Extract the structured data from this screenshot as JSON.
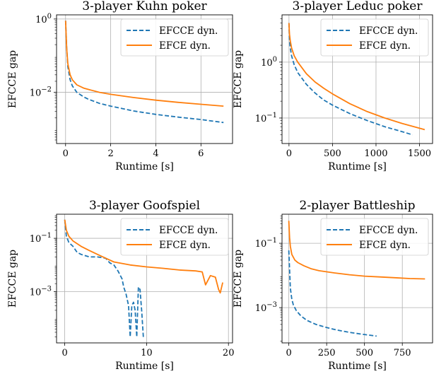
{
  "chart_data": [
    {
      "type": "line",
      "title": "3-player Kuhn poker",
      "xlabel": "Runtime [s]",
      "ylabel": "EFCCE gap",
      "xscale": "linear",
      "yscale": "log",
      "xlim": [
        -0.4,
        7.4
      ],
      "ylim": [
        0.0004,
        1.3
      ],
      "xticks": [
        0,
        2,
        4,
        6
      ],
      "xtick_labels": [
        "0",
        "2",
        "4",
        "6"
      ],
      "yticks": [
        1,
        0.01
      ],
      "ytick_labels": [
        "10^0",
        "10^-2"
      ],
      "grid": true,
      "legend": "top-right",
      "series": [
        {
          "name": "EFCCE dyn.",
          "color": "#1f77b4",
          "style": "dashed",
          "x": [
            0,
            0.05,
            0.1,
            0.2,
            0.3,
            0.5,
            0.8,
            1.0,
            1.5,
            2.0,
            3.0,
            4.0,
            5.0,
            6.0,
            7.0
          ],
          "y": [
            0.9,
            0.15,
            0.05,
            0.022,
            0.015,
            0.01,
            0.0075,
            0.0065,
            0.005,
            0.0042,
            0.0031,
            0.0025,
            0.0021,
            0.0018,
            0.0015
          ]
        },
        {
          "name": "EFCE dyn.",
          "color": "#ff7f0e",
          "style": "solid",
          "x": [
            0,
            0.05,
            0.1,
            0.2,
            0.3,
            0.5,
            0.8,
            1.0,
            1.5,
            2.0,
            3.0,
            4.0,
            5.0,
            6.0,
            7.0
          ],
          "y": [
            0.9,
            0.15,
            0.06,
            0.03,
            0.022,
            0.016,
            0.013,
            0.012,
            0.01,
            0.0088,
            0.0072,
            0.0061,
            0.0053,
            0.0047,
            0.0042
          ]
        }
      ]
    },
    {
      "type": "line",
      "title": "3-player Leduc poker",
      "xlabel": "Runtime [s]",
      "ylabel": "EFCCE gap",
      "xscale": "linear",
      "yscale": "log",
      "xlim": [
        -80,
        1650
      ],
      "ylim": [
        0.035,
        7
      ],
      "xticks": [
        0,
        500,
        1000,
        1500
      ],
      "xtick_labels": [
        "0",
        "500",
        "1000",
        "1500"
      ],
      "yticks": [
        1,
        0.1
      ],
      "ytick_labels": [
        "10^0",
        "10^-1"
      ],
      "grid": true,
      "legend": "top-right",
      "series": [
        {
          "name": "EFCCE dyn.",
          "color": "#1f77b4",
          "style": "dashed",
          "x": [
            0,
            5,
            15,
            30,
            60,
            100,
            200,
            300,
            400,
            500,
            700,
            900,
            1100,
            1300,
            1420
          ],
          "y": [
            5,
            2.5,
            1.8,
            1.3,
            0.9,
            0.65,
            0.4,
            0.28,
            0.21,
            0.17,
            0.12,
            0.09,
            0.07,
            0.057,
            0.05
          ]
        },
        {
          "name": "EFCE dyn.",
          "color": "#ff7f0e",
          "style": "solid",
          "x": [
            0,
            5,
            15,
            30,
            60,
            100,
            200,
            300,
            400,
            500,
            700,
            900,
            1100,
            1300,
            1560
          ],
          "y": [
            5,
            3.2,
            2.4,
            1.8,
            1.3,
            1.0,
            0.62,
            0.44,
            0.34,
            0.27,
            0.18,
            0.13,
            0.1,
            0.08,
            0.062
          ]
        }
      ]
    },
    {
      "type": "line",
      "title": "3-player Goofspiel",
      "xlabel": "Runtime [s]",
      "ylabel": "EFCCE gap",
      "xscale": "linear",
      "yscale": "log",
      "xlim": [
        -1,
        20.5
      ],
      "ylim": [
        1.2e-05,
        0.8
      ],
      "xticks": [
        0,
        10,
        20
      ],
      "xtick_labels": [
        "0",
        "10",
        "20"
      ],
      "yticks": [
        0.1,
        0.001
      ],
      "ytick_labels": [
        "10^-1",
        "10^-3"
      ],
      "grid": true,
      "legend": "top-right",
      "series": [
        {
          "name": "EFCCE dyn.",
          "color": "#1f77b4",
          "style": "dashed",
          "x": [
            0,
            0.2,
            0.5,
            1,
            1.5,
            2,
            3,
            4,
            5,
            5.5,
            6,
            6.5,
            7,
            7.2,
            7.5,
            7.8,
            8.0,
            8.2,
            8.4,
            8.6,
            8.8,
            9.0,
            9.2,
            9.4,
            9.6
          ],
          "y": [
            0.5,
            0.12,
            0.07,
            0.05,
            0.03,
            0.025,
            0.02,
            0.02,
            0.018,
            0.012,
            0.01,
            0.006,
            0.003,
            0.0015,
            0.0008,
            0.0003,
            2e-05,
            0.0003,
            0.0004,
            0.0002,
            2e-05,
            0.0015,
            0.0012,
            0.0002,
            2e-05
          ]
        },
        {
          "name": "EFCE dyn.",
          "color": "#ff7f0e",
          "style": "solid",
          "x": [
            0,
            0.2,
            0.5,
            1,
            2,
            3,
            4,
            5,
            6,
            8,
            10,
            12,
            14,
            16,
            16.8,
            17.2,
            17.8,
            18.4,
            18.8,
            19.0,
            19.3
          ],
          "y": [
            0.5,
            0.2,
            0.12,
            0.08,
            0.05,
            0.035,
            0.025,
            0.018,
            0.013,
            0.01,
            0.0085,
            0.0075,
            0.0065,
            0.006,
            0.0055,
            0.0018,
            0.004,
            0.0035,
            0.0012,
            0.0009,
            0.0022
          ]
        }
      ]
    },
    {
      "type": "line",
      "title": "2-player Battleship",
      "xlabel": "Runtime [s]",
      "ylabel": "EFCCE gap",
      "xscale": "linear",
      "yscale": "log",
      "xlim": [
        -45,
        950
      ],
      "ylim": [
        8e-05,
        0.8
      ],
      "xticks": [
        0,
        250,
        500,
        750
      ],
      "xtick_labels": [
        "0",
        "250",
        "500",
        "750"
      ],
      "yticks": [
        0.1,
        0.001
      ],
      "ytick_labels": [
        "10^-1",
        "10^-3"
      ],
      "grid": true,
      "legend": "top-right",
      "series": [
        {
          "name": "EFCCE dyn.",
          "color": "#1f77b4",
          "style": "dashed",
          "x": [
            0,
            5,
            10,
            20,
            30,
            50,
            80,
            120,
            180,
            250,
            320,
            400,
            480,
            580
          ],
          "y": [
            0.06,
            0.015,
            0.004,
            0.0018,
            0.0012,
            0.0008,
            0.00055,
            0.0004,
            0.0003,
            0.00024,
            0.0002,
            0.00017,
            0.00015,
            0.00013
          ]
        },
        {
          "name": "EFCE dyn.",
          "color": "#ff7f0e",
          "style": "solid",
          "x": [
            0,
            5,
            10,
            20,
            40,
            60,
            100,
            150,
            200,
            300,
            400,
            500,
            600,
            700,
            800,
            900
          ],
          "y": [
            0.5,
            0.15,
            0.08,
            0.045,
            0.03,
            0.025,
            0.02,
            0.016,
            0.014,
            0.012,
            0.0105,
            0.0095,
            0.009,
            0.0085,
            0.008,
            0.0078
          ]
        }
      ]
    }
  ]
}
